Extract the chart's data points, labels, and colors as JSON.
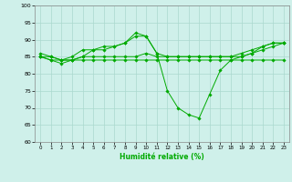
{
  "title": "",
  "xlabel": "Humidité relative (%)",
  "ylabel": "",
  "xlim": [
    -0.5,
    23.5
  ],
  "ylim": [
    60,
    100
  ],
  "yticks": [
    60,
    65,
    70,
    75,
    80,
    85,
    90,
    95,
    100
  ],
  "xticks": [
    0,
    1,
    2,
    3,
    4,
    5,
    6,
    7,
    8,
    9,
    10,
    11,
    12,
    13,
    14,
    15,
    16,
    17,
    18,
    19,
    20,
    21,
    22,
    23
  ],
  "bg_color": "#cff0ea",
  "grid_color": "#aad8ce",
  "line_color": "#00aa00",
  "series": [
    [
      85,
      84,
      83,
      84,
      85,
      87,
      87,
      88,
      89,
      91,
      91,
      86,
      75,
      70,
      68,
      67,
      74,
      81,
      84,
      85,
      86,
      88,
      89,
      89
    ],
    [
      85,
      84,
      84,
      84,
      84,
      84,
      84,
      84,
      84,
      84,
      84,
      84,
      84,
      84,
      84,
      84,
      84,
      84,
      84,
      84,
      84,
      84,
      84,
      84
    ],
    [
      85,
      85,
      84,
      84,
      85,
      85,
      85,
      85,
      85,
      85,
      86,
      85,
      85,
      85,
      85,
      85,
      85,
      85,
      85,
      85,
      86,
      87,
      88,
      89
    ],
    [
      86,
      85,
      84,
      85,
      87,
      87,
      88,
      88,
      89,
      92,
      91,
      86,
      85,
      85,
      85,
      85,
      85,
      85,
      85,
      86,
      87,
      88,
      89,
      89
    ]
  ]
}
